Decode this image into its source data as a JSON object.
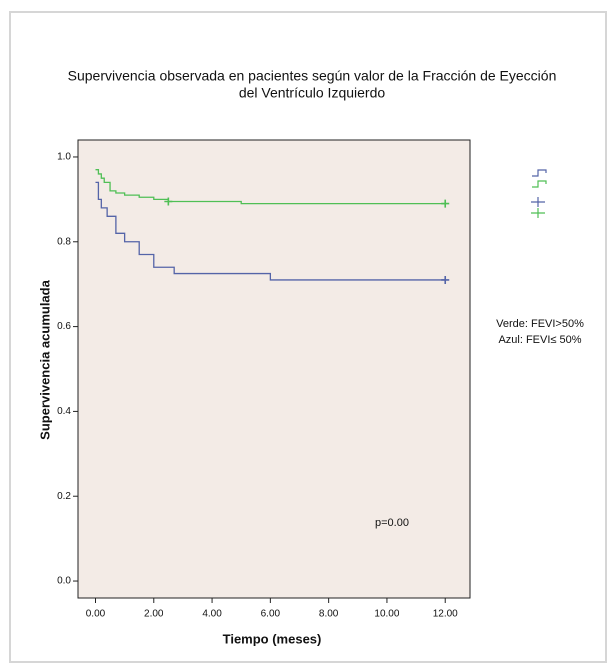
{
  "chart_data": {
    "type": "step",
    "title": [
      "Supervivencia observada en pacientes según valor de la Fracción de Eyección",
      "del Ventrículo Izquierdo"
    ],
    "x_label": "Tiempo (meses)",
    "y_label": "Supervivencia acumulada",
    "annotations": [
      "Verde: FEVI>50%",
      "Azul: FEVI≤ 50%",
      "p=0.00"
    ],
    "xlim": [
      -0.6,
      12.85
    ],
    "ylim": [
      -0.04,
      1.04
    ],
    "xticks": [
      {
        "value": 0,
        "label": "0.00"
      },
      {
        "value": 2,
        "label": "2.00"
      },
      {
        "value": 4,
        "label": "4.00"
      },
      {
        "value": 6,
        "label": "6.00"
      },
      {
        "value": 8,
        "label": "8.00"
      },
      {
        "value": 10,
        "label": "10.00"
      },
      {
        "value": 12,
        "label": "12.00"
      }
    ],
    "yticks": [
      {
        "value": 0,
        "label": "0.0"
      },
      0.2,
      0.4,
      0.6,
      0.8,
      {
        "value": 1,
        "label": "1.0"
      }
    ],
    "background": "#f3ebe6",
    "series": [
      {
        "color": "#5464a8",
        "x": [
          0,
          0.1,
          0.2,
          0.4,
          0.7,
          1.0,
          1.5,
          2.0,
          2.7,
          6.0,
          12.0
        ],
        "values": [
          0.94,
          0.9,
          0.88,
          0.86,
          0.82,
          0.8,
          0.77,
          0.74,
          0.725,
          0.71,
          0.71
        ],
        "censor_x": [
          12.0
        ],
        "censor_values": [
          0.71
        ]
      },
      {
        "color": "#4fbf55",
        "x": [
          0,
          0.1,
          0.2,
          0.3,
          0.5,
          0.7,
          1.0,
          1.5,
          2.0,
          2.5,
          5.0,
          12.0
        ],
        "values": [
          0.97,
          0.96,
          0.95,
          0.94,
          0.92,
          0.915,
          0.91,
          0.905,
          0.9,
          0.895,
          0.89,
          0.89
        ],
        "censor_x": [
          2.5,
          12.0
        ],
        "censor_values": [
          0.895,
          0.89
        ]
      }
    ]
  }
}
